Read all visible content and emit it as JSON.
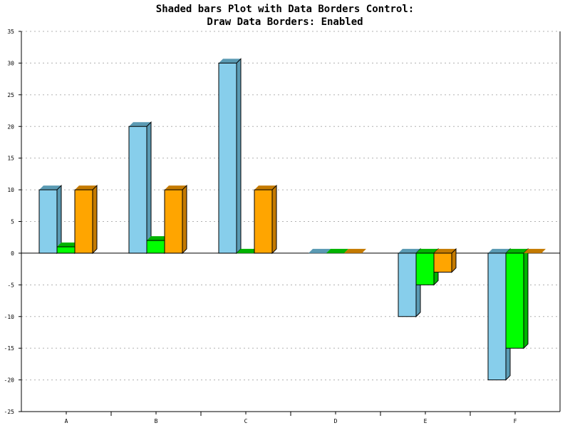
{
  "title_line1": "Shaded bars Plot with Data Borders Control:",
  "title_line2": "Draw Data Borders: Enabled",
  "chart_data": {
    "type": "bar",
    "title": "Shaded bars Plot with Data Borders Control: Draw Data Borders: Enabled",
    "categories": [
      "A",
      "B",
      "C",
      "D",
      "E",
      "F"
    ],
    "series": [
      {
        "values": [
          10,
          20,
          30,
          0,
          -10,
          -20
        ],
        "color": "#87ceeb",
        "shade_color": "#5a9ab3"
      },
      {
        "values": [
          1,
          2,
          0,
          0,
          -5,
          -15
        ],
        "color": "#00ff00",
        "shade_color": "#00b300"
      },
      {
        "values": [
          10,
          10,
          10,
          0,
          -3,
          0
        ],
        "color": "#ffa500",
        "shade_color": "#c47a00"
      }
    ],
    "ylim": [
      -25,
      35
    ],
    "yticks": [
      -25,
      -20,
      -15,
      -10,
      -5,
      0,
      5,
      10,
      15,
      20,
      25,
      30,
      35
    ],
    "grid": true,
    "data_borders": true
  }
}
